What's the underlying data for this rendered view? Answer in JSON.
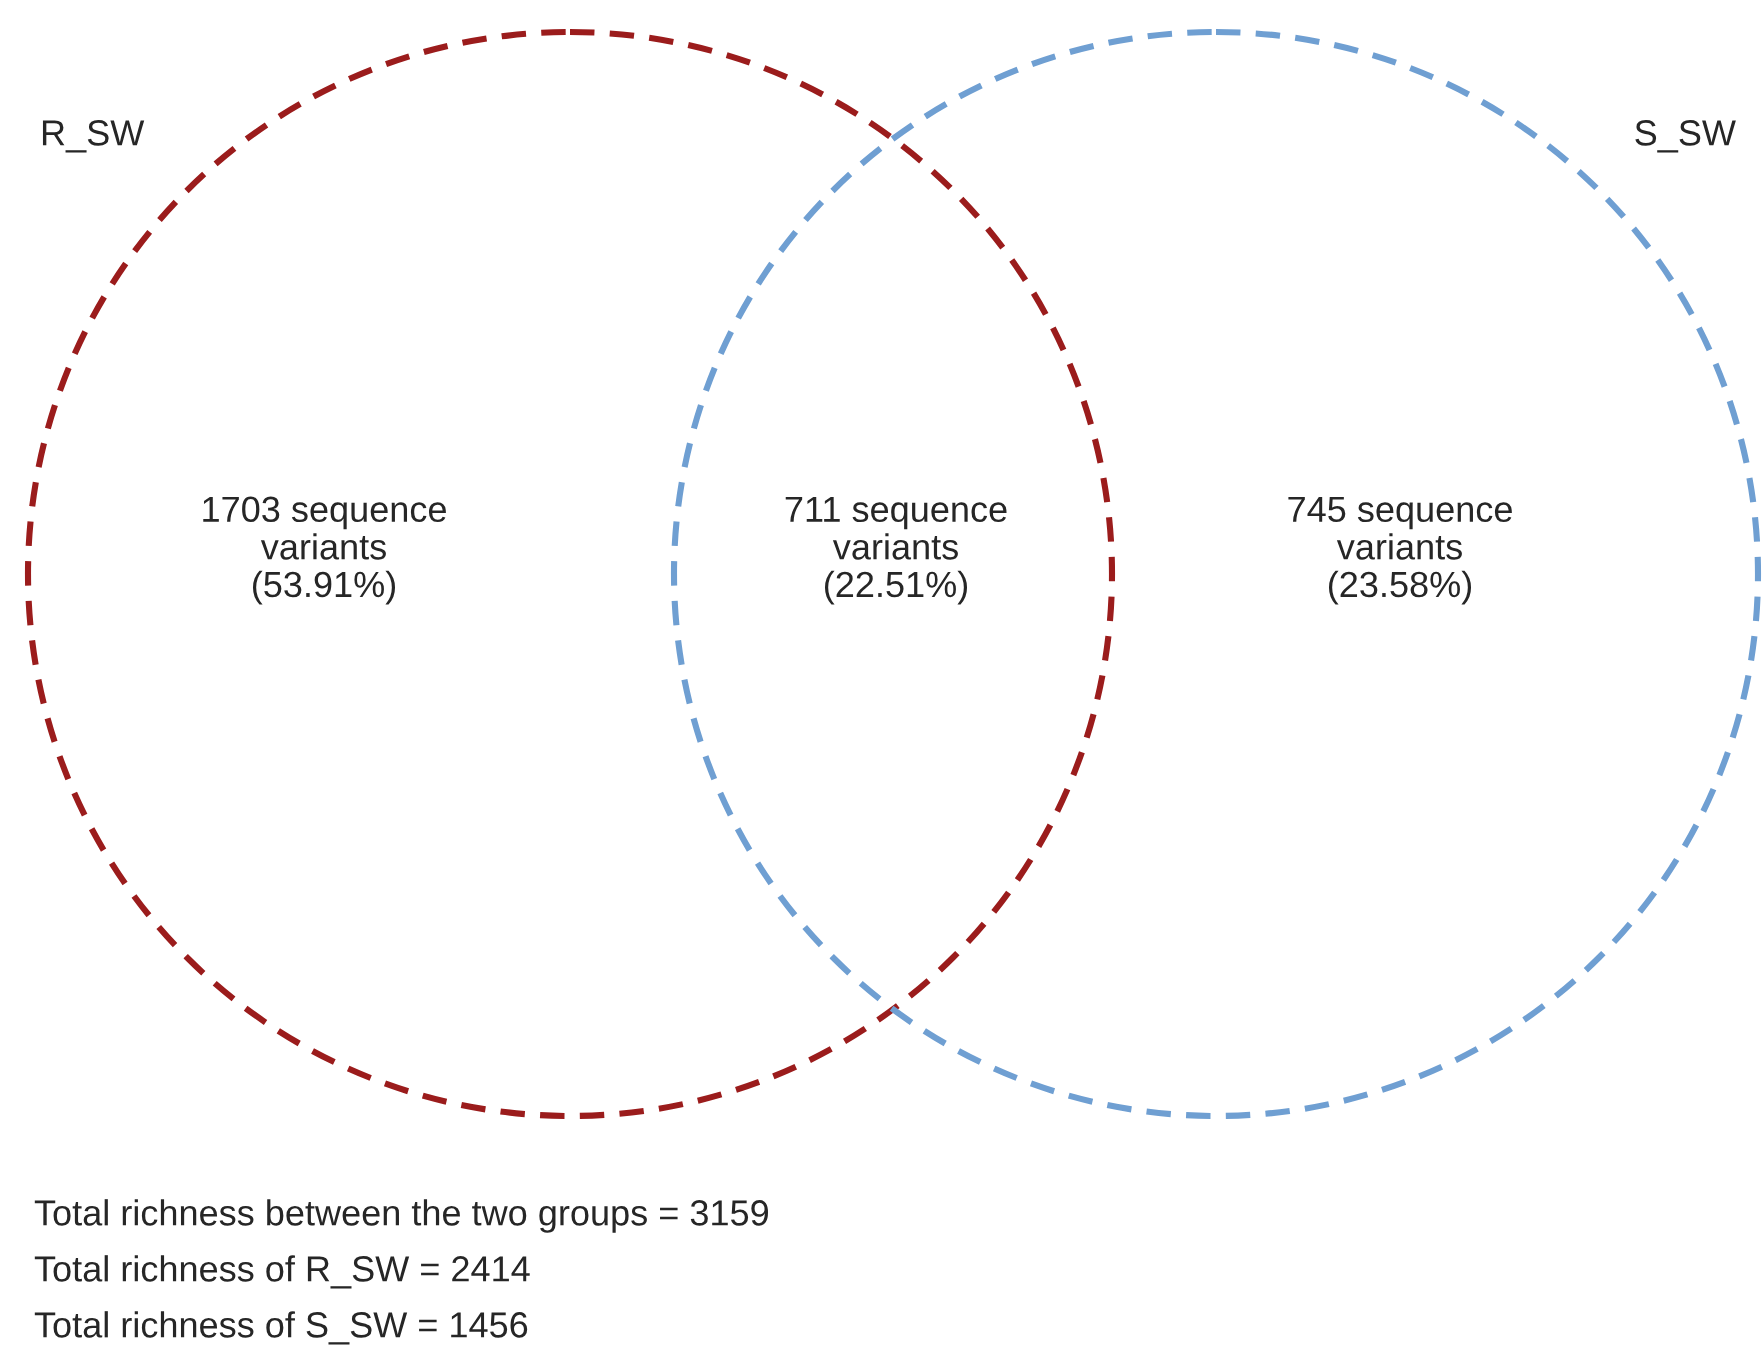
{
  "chart_data": {
    "type": "other",
    "categories": [
      null,
      null,
      null
    ],
    "values": [
      1703,
      711,
      745
    ],
    "value_labels": [
      "1703 sequence\nvariants\n(53.91%)",
      "711 sequence\nvariants\n(22.51%)",
      "745 sequence\nvariants\n(23.58%)"
    ],
    "annotations": [
      "R_SW",
      "S_SW",
      "Total richness between the two groups = 3159",
      "Total richness of R_SW = 2414",
      "Total richness of S_SW = 1456"
    ]
  }
}
